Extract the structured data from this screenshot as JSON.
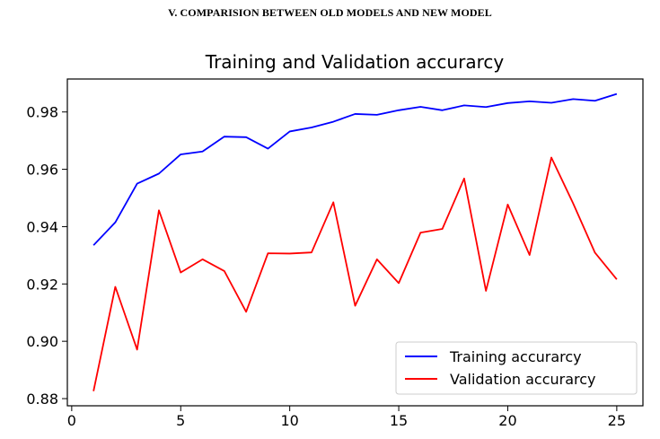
{
  "document": {
    "section_heading": "V.   COMPARISION BETWEEN OLD MODELS AND NEW MODEL"
  },
  "chart_data": {
    "type": "line",
    "title": "Training and Validation accurarcy",
    "xlabel": "",
    "ylabel": "",
    "xlim": [
      -0.2,
      26.2
    ],
    "ylim": [
      0.8775,
      0.9915
    ],
    "x_ticks": [
      0,
      5,
      10,
      15,
      20,
      25
    ],
    "y_ticks": [
      0.88,
      0.9,
      0.92,
      0.94,
      0.96,
      0.98
    ],
    "y_tick_labels": [
      "0.88",
      "0.90",
      "0.92",
      "0.94",
      "0.96",
      "0.98"
    ],
    "x": [
      1,
      2,
      3,
      4,
      5,
      6,
      7,
      8,
      9,
      10,
      11,
      12,
      13,
      14,
      15,
      16,
      17,
      18,
      19,
      20,
      21,
      22,
      23,
      24,
      25
    ],
    "series": [
      {
        "name": "Training accurarcy",
        "color": "#0000ff",
        "values": [
          0.9335,
          0.9415,
          0.955,
          0.9585,
          0.9652,
          0.9662,
          0.9714,
          0.9712,
          0.9672,
          0.9732,
          0.9746,
          0.9766,
          0.9793,
          0.979,
          0.9806,
          0.9818,
          0.9806,
          0.9823,
          0.9817,
          0.9831,
          0.9837,
          0.9832,
          0.9845,
          0.9839,
          0.9863
        ]
      },
      {
        "name": "Validation accurarcy",
        "color": "#ff0000",
        "values": [
          0.8826,
          0.919,
          0.8971,
          0.9457,
          0.924,
          0.9286,
          0.9245,
          0.9103,
          0.9307,
          0.9306,
          0.931,
          0.9485,
          0.9124,
          0.9286,
          0.9203,
          0.9379,
          0.9392,
          0.9568,
          0.9176,
          0.9477,
          0.9301,
          0.9641,
          0.9481,
          0.9309,
          0.9216
        ]
      }
    ],
    "legend_position": "lower-right",
    "grid": false
  }
}
